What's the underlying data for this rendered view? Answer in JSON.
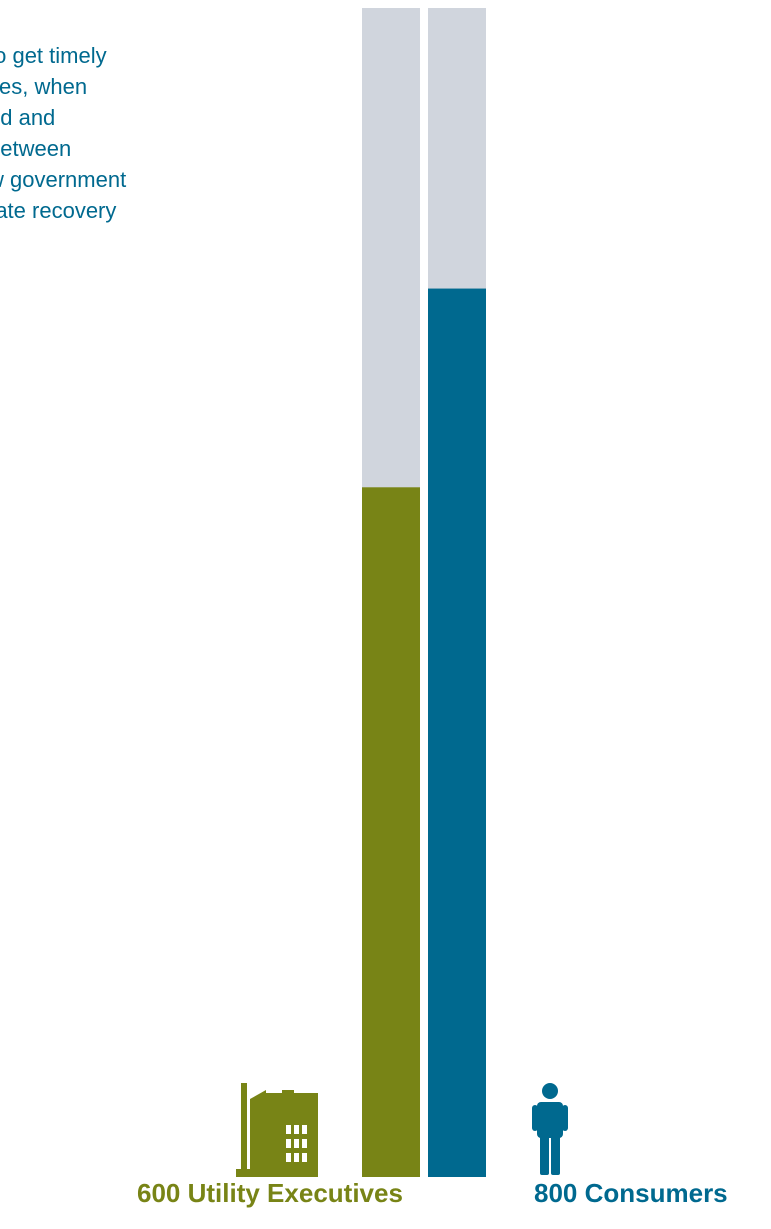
{
  "statement": {
    "lines": [
      "to get timely",
      "ces, when",
      "ed and",
      "between",
      "w government",
      "rate recovery"
    ]
  },
  "groups": {
    "executives": {
      "label": "600 Utility Executives",
      "icon": "factory-icon",
      "color": "#788416"
    },
    "consumers": {
      "label": "800 Consumers",
      "icon": "person-icon",
      "color": "#00698f"
    }
  },
  "chart_data": {
    "type": "bar",
    "title": "",
    "xlabel": "",
    "ylabel": "",
    "ylim": [
      0,
      100
    ],
    "grid": false,
    "track_color": "#d0d5dd",
    "categories": [
      "600 Utility Executives",
      "800 Consumers"
    ],
    "values": [
      59,
      76
    ],
    "colors": [
      "#788416",
      "#00698f"
    ]
  }
}
